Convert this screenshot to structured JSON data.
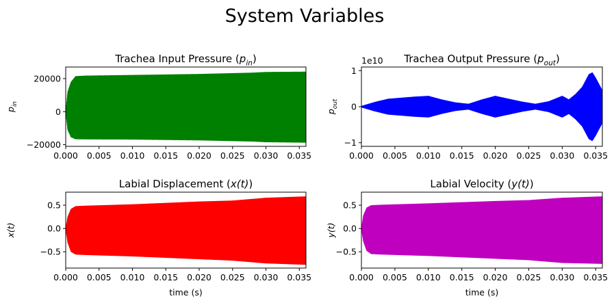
{
  "figure": {
    "suptitle": "System Variables"
  },
  "chart_data": [
    {
      "type": "line",
      "title": "Trachea Input Pressure (p_in)",
      "title_plain": "Trachea Input Pressure (",
      "title_var": "p",
      "title_sub": "in",
      "title_close": ")",
      "ylabel_var": "p",
      "ylabel_sub": "in",
      "xlabel": "",
      "color": "#008000",
      "xlim": [
        0,
        0.036
      ],
      "ylim": [
        -21000,
        27000
      ],
      "xticks": [
        0,
        0.005,
        0.01,
        0.015,
        0.02,
        0.025,
        0.03,
        0.035
      ],
      "xtick_labels": [
        "0.000",
        "0.005",
        "0.010",
        "0.015",
        "0.020",
        "0.025",
        "0.030",
        "0.035"
      ],
      "yticks": [
        -20000,
        0,
        20000
      ],
      "ytick_labels": [
        "−20000",
        "0",
        "20000"
      ],
      "offset_label": "",
      "envelope": {
        "x": [
          0,
          0.0003,
          0.0008,
          0.0015,
          0.003,
          0.01,
          0.02,
          0.028,
          0.03,
          0.036
        ],
        "upper": [
          0,
          12000,
          18000,
          21500,
          21800,
          22200,
          22800,
          23600,
          24000,
          24200
        ],
        "lower": [
          0,
          -11000,
          -15500,
          -16700,
          -16800,
          -16900,
          -17400,
          -18100,
          -18500,
          -18800
        ]
      }
    },
    {
      "type": "line",
      "title": "Trachea Output Pressure (p_out)",
      "title_plain": "Trachea Output Pressure (",
      "title_var": "p",
      "title_sub": "out",
      "title_close": ")",
      "ylabel_var": "p",
      "ylabel_sub": "out",
      "xlabel": "",
      "color": "#0000ff",
      "xlim": [
        0,
        0.036
      ],
      "ylim": [
        -1.1,
        1.1
      ],
      "xticks": [
        0,
        0.005,
        0.01,
        0.015,
        0.02,
        0.025,
        0.03,
        0.035
      ],
      "xtick_labels": [
        "0.000",
        "0.005",
        "0.010",
        "0.015",
        "0.020",
        "0.025",
        "0.030",
        "0.035"
      ],
      "yticks": [
        -1,
        0,
        1
      ],
      "ytick_labels": [
        "−1",
        "0",
        "1"
      ],
      "offset_label": "1e10",
      "envelope": {
        "x": [
          0,
          0.002,
          0.004,
          0.006,
          0.008,
          0.01,
          0.012,
          0.014,
          0.016,
          0.018,
          0.02,
          0.022,
          0.024,
          0.026,
          0.028,
          0.03,
          0.031,
          0.032,
          0.033,
          0.034,
          0.0345,
          0.035,
          0.036
        ],
        "upper": [
          0.02,
          0.13,
          0.22,
          0.25,
          0.28,
          0.3,
          0.2,
          0.12,
          0.08,
          0.2,
          0.3,
          0.22,
          0.14,
          0.08,
          0.15,
          0.3,
          0.2,
          0.35,
          0.55,
          0.9,
          0.95,
          0.8,
          0.45
        ],
        "lower": [
          -0.02,
          -0.13,
          -0.22,
          -0.25,
          -0.28,
          -0.3,
          -0.2,
          -0.12,
          -0.08,
          -0.2,
          -0.3,
          -0.22,
          -0.14,
          -0.08,
          -0.15,
          -0.3,
          -0.2,
          -0.35,
          -0.55,
          -0.9,
          -0.95,
          -0.8,
          -0.45
        ]
      }
    },
    {
      "type": "line",
      "title": "Labial Displacement (x(t))",
      "title_plain": "Labial Displacement (",
      "title_var": "x(t)",
      "title_sub": "",
      "title_close": ")",
      "ylabel_var": "x(t)",
      "ylabel_sub": "",
      "xlabel": "time (s)",
      "color": "#ff0000",
      "xlim": [
        0,
        0.036
      ],
      "ylim": [
        -0.85,
        0.78
      ],
      "xticks": [
        0,
        0.005,
        0.01,
        0.015,
        0.02,
        0.025,
        0.03,
        0.035
      ],
      "xtick_labels": [
        "0.000",
        "0.005",
        "0.010",
        "0.015",
        "0.020",
        "0.025",
        "0.030",
        "0.035"
      ],
      "yticks": [
        -0.5,
        0,
        0.5
      ],
      "ytick_labels": [
        "−0.5",
        "0.0",
        "0.5"
      ],
      "offset_label": "",
      "envelope": {
        "x": [
          0,
          0.0003,
          0.0008,
          0.0015,
          0.003,
          0.01,
          0.02,
          0.025,
          0.03,
          0.036
        ],
        "upper": [
          0,
          0.25,
          0.42,
          0.48,
          0.49,
          0.52,
          0.58,
          0.6,
          0.66,
          0.69
        ],
        "lower": [
          0,
          -0.3,
          -0.5,
          -0.56,
          -0.57,
          -0.6,
          -0.66,
          -0.69,
          -0.75,
          -0.78
        ]
      }
    },
    {
      "type": "line",
      "title": "Labial Velocity (y(t))",
      "title_plain": "Labial Velocity (",
      "title_var": "y(t)",
      "title_sub": "",
      "title_close": ")",
      "ylabel_var": "y(t)",
      "ylabel_sub": "",
      "xlabel": "time (s)",
      "color": "#bf00bf",
      "xlim": [
        0,
        0.036
      ],
      "ylim": [
        -0.85,
        0.78
      ],
      "xticks": [
        0,
        0.005,
        0.01,
        0.015,
        0.02,
        0.025,
        0.03,
        0.035
      ],
      "xtick_labels": [
        "0.000",
        "0.005",
        "0.010",
        "0.015",
        "0.020",
        "0.025",
        "0.030",
        "0.035"
      ],
      "yticks": [
        -0.5,
        0,
        0.5
      ],
      "ytick_labels": [
        "−0.5",
        "0.0",
        "0.5"
      ],
      "offset_label": "",
      "envelope": {
        "x": [
          0,
          0.0003,
          0.0008,
          0.0015,
          0.003,
          0.01,
          0.02,
          0.025,
          0.03,
          0.036
        ],
        "upper": [
          0,
          0.28,
          0.45,
          0.5,
          0.51,
          0.54,
          0.59,
          0.61,
          0.66,
          0.69
        ],
        "lower": [
          0,
          -0.28,
          -0.48,
          -0.55,
          -0.56,
          -0.59,
          -0.65,
          -0.68,
          -0.74,
          -0.76
        ]
      }
    }
  ]
}
